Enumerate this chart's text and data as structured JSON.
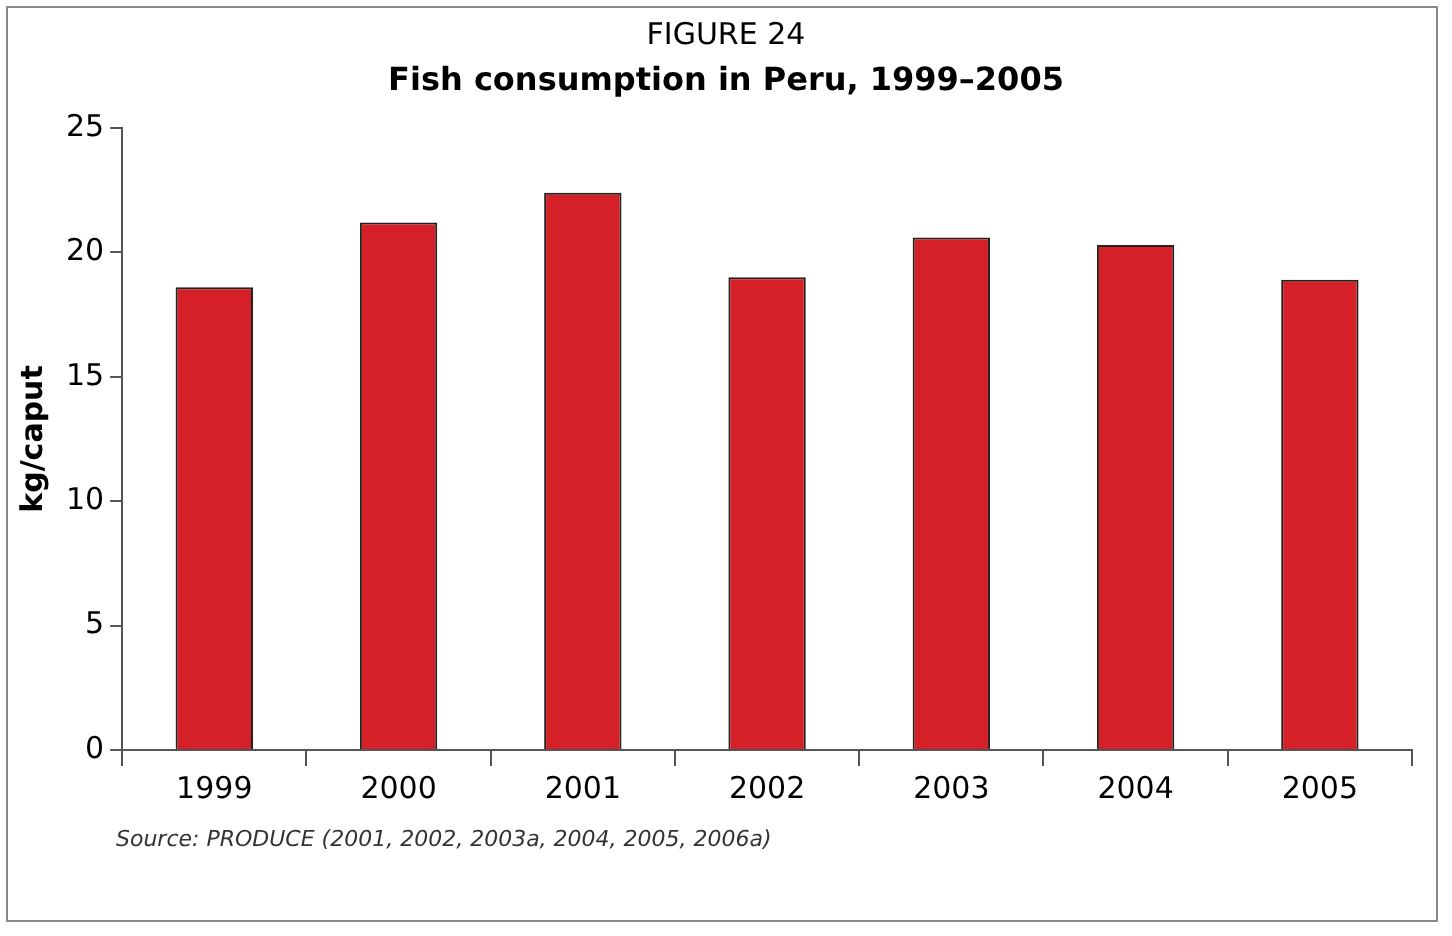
{
  "chart_data": {
    "type": "bar",
    "title": "FIGURE 24",
    "subtitle": "Fish consumption in Peru, 1999–2005",
    "ylabel": "kg/caput",
    "categories": [
      "1999",
      "2000",
      "2001",
      "2002",
      "2003",
      "2004",
      "2005"
    ],
    "values": [
      18.6,
      21.2,
      22.4,
      19.0,
      20.6,
      20.3,
      18.9
    ],
    "color": "#d42026",
    "ylim": [
      0,
      25
    ],
    "yticks": [
      0,
      5,
      10,
      15,
      20,
      25
    ],
    "grid": false,
    "legend": false,
    "annotations": [
      "Source: PRODUCE (2001, 2002, 2003a, 2004, 2005, 2006a)"
    ]
  }
}
